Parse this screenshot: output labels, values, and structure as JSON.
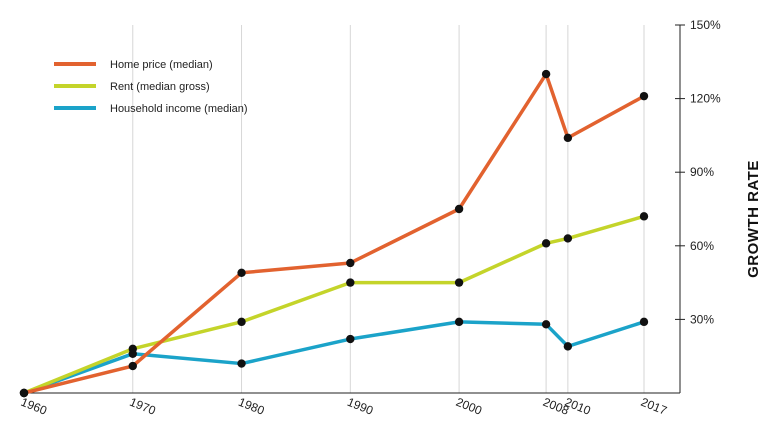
{
  "chart_data": {
    "type": "line",
    "ylabel": "GROWTH RATE",
    "ylim": [
      0,
      150
    ],
    "ytick_values": [
      30,
      60,
      90,
      120,
      150
    ],
    "ytick_labels": [
      "30%",
      "60%",
      "90%",
      "120%",
      "150%"
    ],
    "x": [
      1960,
      1970,
      1980,
      1990,
      2000,
      2008,
      2010,
      2017
    ],
    "xtick_labels": [
      "1960",
      "1970",
      "1980",
      "1990",
      "2000",
      "2008",
      "2010",
      "2017"
    ],
    "xlim": [
      1960,
      2017
    ],
    "grid": "vertical",
    "y_axis_side": "right",
    "legend_placement": "top-left",
    "series": [
      {
        "name": "Home price (median)",
        "color": "#e2622f",
        "values": [
          0,
          11,
          49,
          53,
          75,
          130,
          104,
          121
        ]
      },
      {
        "name": "Rent (median gross)",
        "color": "#c4d42a",
        "values": [
          0,
          18,
          29,
          45,
          45,
          61,
          63,
          72
        ]
      },
      {
        "name": "Household income (median)",
        "color": "#1ba3c9",
        "values": [
          0,
          16,
          12,
          22,
          29,
          28,
          19,
          29
        ]
      }
    ]
  }
}
